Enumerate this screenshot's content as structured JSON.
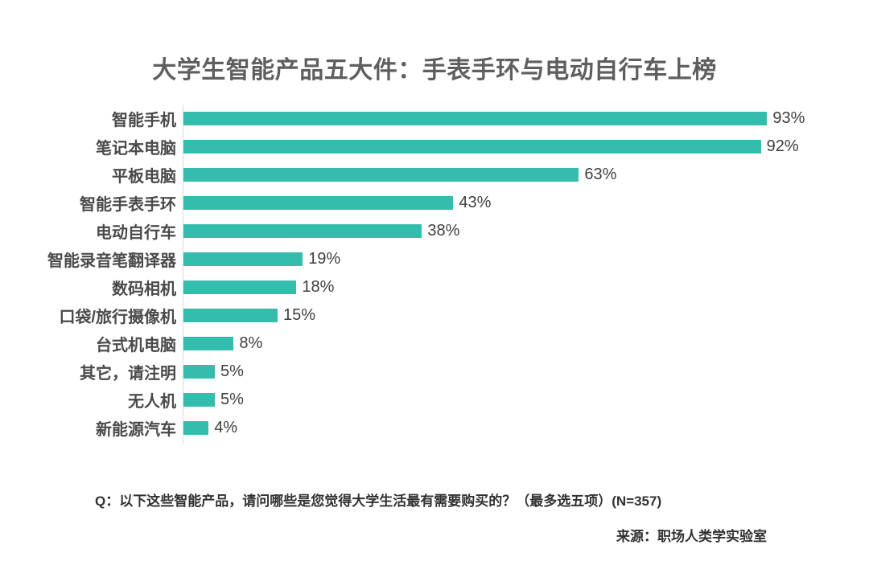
{
  "chart_data": {
    "type": "bar",
    "orientation": "horizontal",
    "title": "大学生智能产品五大件：手表手环与电动自行车上榜",
    "categories": [
      "智能手机",
      "笔记本电脑",
      "平板电脑",
      "智能手表手环",
      "电动自行车",
      "智能录音笔翻译器",
      "数码相机",
      "口袋/旅行摄像机",
      "台式机电脑",
      "其它，请注明",
      "无人机",
      "新能源汽车"
    ],
    "values": [
      93,
      92,
      63,
      43,
      38,
      19,
      18,
      15,
      8,
      5,
      5,
      4
    ],
    "value_labels": [
      "93%",
      "92%",
      "63%",
      "43%",
      "38%",
      "19%",
      "18%",
      "15%",
      "8%",
      "5%",
      "5%",
      "4%"
    ],
    "unit": "%",
    "xlim": [
      0,
      100
    ],
    "grid": false,
    "legend": false,
    "bar_color": "#34bdac",
    "title_color": "#5f5f5f",
    "label_color": "#4a4a4a",
    "value_color": "#3f3f3f",
    "axis_color": "#dcdcdc"
  },
  "footer": {
    "question": "Q：以下这些智能产品，请问哪些是您觉得大学生活最有需要购买的？（最多选五项）(N=357)",
    "source": "来源：职场人类学实验室"
  }
}
